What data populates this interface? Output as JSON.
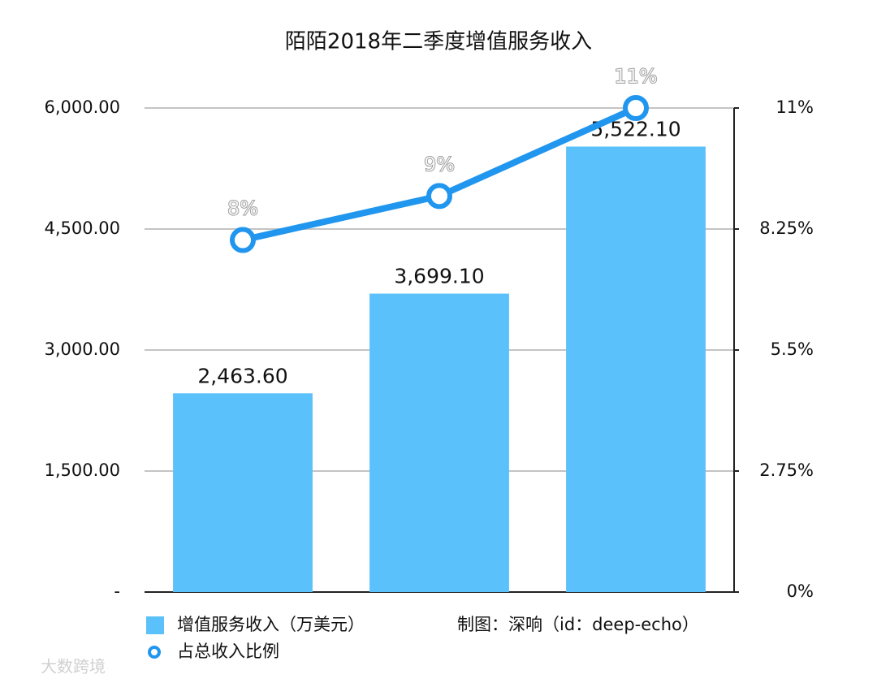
{
  "chart_data": {
    "type": "bar",
    "title": "陌陌2018年二季度增值服务收入",
    "categories": [
      null,
      null,
      null
    ],
    "series": [
      {
        "name": "增值服务收入（万美元）",
        "type": "bar",
        "color": "#5bc1fa",
        "values": [
          2463.6,
          3699.1,
          5522.1
        ],
        "value_labels": [
          "2,463.60",
          "3,699.10",
          "5,522.10"
        ]
      },
      {
        "name": "占总收入比例",
        "type": "line",
        "axis": "y2",
        "color": "#2196ef",
        "values": [
          8,
          9,
          11
        ],
        "value_labels": [
          "8%",
          "9%",
          "11%"
        ]
      }
    ],
    "ylim": [
      0,
      6000
    ],
    "yticks": [
      {
        "value": 0,
        "label": "-"
      },
      {
        "value": 1500,
        "label": "1,500.00"
      },
      {
        "value": 3000,
        "label": "3,000.00"
      },
      {
        "value": 4500,
        "label": "4,500.00"
      },
      {
        "value": 6000,
        "label": "6,000.00"
      }
    ],
    "y2lim": [
      0,
      11
    ],
    "y2ticks": [
      {
        "value": 0,
        "label": "0%"
      },
      {
        "value": 2.75,
        "label": "2.75%"
      },
      {
        "value": 5.5,
        "label": "5.5%"
      },
      {
        "value": 8.25,
        "label": "8.25%"
      },
      {
        "value": 11,
        "label": "11%"
      }
    ],
    "grid": true,
    "annotation": "制图：深响（id：deep-echo）",
    "watermark": "大数跨境"
  }
}
